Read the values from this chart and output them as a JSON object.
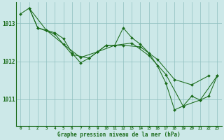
{
  "background_color": "#cce8e8",
  "grid_color": "#8fbfbf",
  "line_color": "#1a6b1a",
  "xlabel": "Graphe pression niveau de la mer (hPa)",
  "xlim": [
    -0.5,
    23.5
  ],
  "ylim": [
    1010.3,
    1013.55
  ],
  "yticks": [
    1011,
    1012,
    1013
  ],
  "xticks": [
    0,
    1,
    2,
    3,
    4,
    5,
    6,
    7,
    8,
    9,
    10,
    11,
    12,
    13,
    14,
    15,
    16,
    17,
    18,
    19,
    20,
    21,
    22,
    23
  ],
  "series1": [
    [
      0,
      1013.25
    ],
    [
      1,
      1013.4
    ],
    [
      2,
      1012.88
    ],
    [
      3,
      1012.82
    ],
    [
      4,
      1012.75
    ],
    [
      5,
      1012.6
    ],
    [
      6,
      1012.22
    ],
    [
      7,
      1011.96
    ],
    [
      8,
      1012.08
    ],
    [
      9,
      1012.25
    ],
    [
      10,
      1012.42
    ],
    [
      11,
      1012.42
    ],
    [
      12,
      1012.88
    ],
    [
      13,
      1012.62
    ],
    [
      14,
      1012.45
    ],
    [
      15,
      1012.22
    ],
    [
      16,
      1011.88
    ],
    [
      17,
      1011.42
    ],
    [
      18,
      1010.72
    ],
    [
      19,
      1010.82
    ],
    [
      20,
      1011.08
    ],
    [
      21,
      1010.98
    ],
    [
      22,
      1011.08
    ],
    [
      23,
      1011.62
    ]
  ],
  "series2": [
    [
      1,
      1013.4
    ],
    [
      2,
      1012.88
    ],
    [
      4,
      1012.72
    ],
    [
      6,
      1012.18
    ],
    [
      8,
      1012.08
    ],
    [
      10,
      1012.42
    ],
    [
      12,
      1012.42
    ],
    [
      14,
      1012.38
    ],
    [
      16,
      1012.05
    ],
    [
      18,
      1011.52
    ],
    [
      20,
      1011.38
    ],
    [
      22,
      1011.62
    ]
  ],
  "series3": [
    [
      1,
      1013.4
    ],
    [
      3,
      1012.82
    ],
    [
      5,
      1012.45
    ],
    [
      7,
      1012.1
    ],
    [
      9,
      1012.25
    ],
    [
      11,
      1012.42
    ],
    [
      13,
      1012.48
    ],
    [
      15,
      1012.15
    ],
    [
      17,
      1011.65
    ],
    [
      19,
      1010.82
    ],
    [
      21,
      1010.98
    ],
    [
      23,
      1011.62
    ]
  ]
}
